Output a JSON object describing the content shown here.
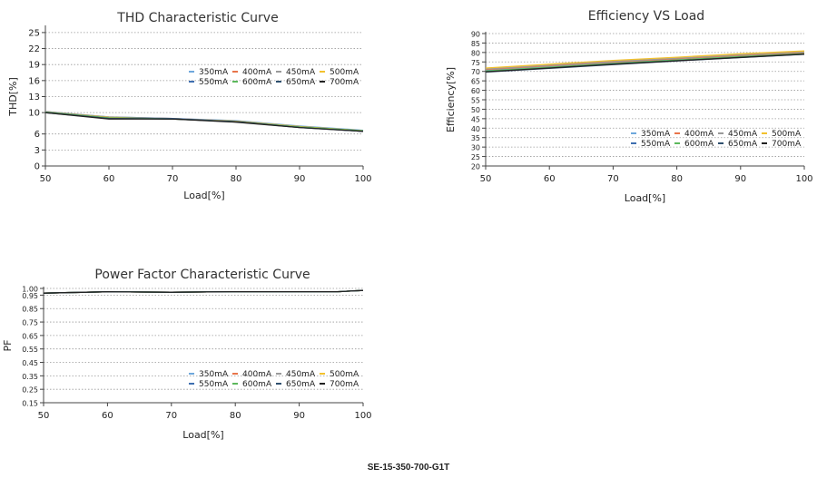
{
  "footer": {
    "model": "SE-15-350-700-G1T"
  },
  "chart_data": [
    {
      "id": "thd",
      "type": "line",
      "title": "THD Characteristic Curve",
      "xlabel": "Load[%]",
      "ylabel": "THD[%]",
      "xlim": [
        50,
        100
      ],
      "ylim": [
        0,
        26
      ],
      "xticks": [
        50,
        60,
        70,
        80,
        90,
        100
      ],
      "yticks": [
        0,
        3,
        6,
        10,
        13,
        16,
        19,
        22,
        25
      ],
      "grid": "horizontal-dotted",
      "legend": "center-right",
      "series": [
        {
          "name": "350mA",
          "color": "#6fa8dc",
          "x": [
            50,
            60,
            70,
            80,
            90,
            100
          ],
          "y": [
            10.2,
            9.2,
            8.9,
            8.5,
            7.5,
            6.7
          ]
        },
        {
          "name": "400mA",
          "color": "#e8744a",
          "x": [
            50,
            60,
            70,
            80,
            90,
            100
          ],
          "y": [
            10.2,
            9.1,
            8.9,
            8.4,
            7.4,
            6.6
          ]
        },
        {
          "name": "450mA",
          "color": "#9a9a9a",
          "x": [
            50,
            60,
            70,
            80,
            90,
            100
          ],
          "y": [
            10.2,
            9.2,
            8.9,
            8.4,
            7.4,
            6.6
          ]
        },
        {
          "name": "500mA",
          "color": "#f2c12e",
          "x": [
            50,
            60,
            70,
            80,
            90,
            100
          ],
          "y": [
            10.1,
            9.1,
            8.8,
            8.4,
            7.4,
            6.6
          ]
        },
        {
          "name": "550mA",
          "color": "#3f6fb0",
          "x": [
            50,
            60,
            70,
            80,
            90,
            100
          ],
          "y": [
            10.1,
            9.0,
            8.9,
            8.3,
            7.3,
            6.5
          ]
        },
        {
          "name": "600mA",
          "color": "#5cb85c",
          "x": [
            50,
            60,
            70,
            80,
            90,
            100
          ],
          "y": [
            10.1,
            9.0,
            8.8,
            8.3,
            7.3,
            6.6
          ]
        },
        {
          "name": "650mA",
          "color": "#2e4f6e",
          "x": [
            50,
            60,
            70,
            80,
            90,
            100
          ],
          "y": [
            10.0,
            8.9,
            8.8,
            8.3,
            7.2,
            6.5
          ]
        },
        {
          "name": "700mA",
          "color": "#222222",
          "x": [
            50,
            60,
            70,
            80,
            90,
            100
          ],
          "y": [
            10.0,
            8.8,
            8.8,
            8.2,
            7.2,
            6.5
          ]
        }
      ]
    },
    {
      "id": "efficiency",
      "type": "line",
      "title": "Efficiency VS Load",
      "xlabel": "Load[%]",
      "ylabel": "Efficiency[%]",
      "xlim": [
        50,
        100
      ],
      "ylim": [
        20,
        90
      ],
      "xticks": [
        50,
        60,
        70,
        80,
        90,
        100
      ],
      "yticks": [
        20,
        25,
        30,
        35,
        40,
        45,
        50,
        55,
        60,
        65,
        70,
        75,
        80,
        85,
        90
      ],
      "grid": "horizontal-dotted",
      "legend": "bottom-right",
      "series": [
        {
          "name": "350mA",
          "color": "#6fa8dc",
          "x": [
            50,
            60,
            70,
            80,
            90,
            100
          ],
          "y": [
            70.5,
            72.5,
            74.5,
            76.2,
            78,
            79.5
          ]
        },
        {
          "name": "400mA",
          "color": "#e8744a",
          "x": [
            50,
            60,
            70,
            80,
            90,
            100
          ],
          "y": [
            71,
            73,
            75,
            76.7,
            78.5,
            80
          ]
        },
        {
          "name": "450mA",
          "color": "#9a9a9a",
          "x": [
            50,
            60,
            70,
            80,
            90,
            100
          ],
          "y": [
            71.3,
            73.3,
            75.3,
            77,
            78.8,
            80.3
          ]
        },
        {
          "name": "500mA",
          "color": "#f2c12e",
          "x": [
            50,
            60,
            70,
            80,
            90,
            100
          ],
          "y": [
            71.8,
            73.8,
            75.8,
            77.5,
            79.3,
            80.8
          ]
        },
        {
          "name": "550mA",
          "color": "#3f6fb0",
          "x": [
            50,
            60,
            70,
            80,
            90,
            100
          ],
          "y": [
            70,
            72,
            74,
            75.8,
            77.6,
            79.2
          ]
        },
        {
          "name": "600mA",
          "color": "#5cb85c",
          "x": [
            50,
            60,
            70,
            80,
            90,
            100
          ],
          "y": [
            70.2,
            72.2,
            74.2,
            76,
            77.8,
            79.4
          ]
        },
        {
          "name": "650mA",
          "color": "#2e4f6e",
          "x": [
            50,
            60,
            70,
            80,
            90,
            100
          ],
          "y": [
            69.6,
            71.6,
            73.6,
            75.5,
            77.3,
            79
          ]
        },
        {
          "name": "700mA",
          "color": "#222222",
          "x": [
            50,
            60,
            70,
            80,
            90,
            100
          ],
          "y": [
            69.8,
            71.8,
            73.8,
            75.6,
            77.4,
            79.1
          ]
        }
      ]
    },
    {
      "id": "pf",
      "type": "line",
      "title": "Power Factor Characteristic Curve",
      "xlabel": "Load[%]",
      "ylabel": "PF",
      "xlim": [
        50,
        100
      ],
      "ylim": [
        0.15,
        1.0
      ],
      "xticks": [
        50,
        60,
        70,
        80,
        90,
        100
      ],
      "yticks": [
        0.15,
        0.25,
        0.35,
        0.45,
        0.55,
        0.65,
        0.75,
        0.85,
        0.95,
        1.0
      ],
      "ytick_labels": [
        "0.15",
        "0.25",
        "0.35",
        "0.45",
        "0.55",
        "0.65",
        "0.75",
        "0.85",
        "0.95",
        "1.00"
      ],
      "grid": "horizontal-dotted",
      "legend": "bottom-right",
      "series": [
        {
          "name": "350mA",
          "color": "#6fa8dc",
          "x": [
            50,
            60,
            70,
            80,
            90,
            96,
            100
          ],
          "y": [
            0.965,
            0.975,
            0.972,
            0.976,
            0.976,
            0.976,
            0.985
          ]
        },
        {
          "name": "400mA",
          "color": "#e8744a",
          "x": [
            50,
            60,
            70,
            80,
            90,
            96,
            100
          ],
          "y": [
            0.965,
            0.975,
            0.972,
            0.976,
            0.976,
            0.976,
            0.985
          ]
        },
        {
          "name": "450mA",
          "color": "#9a9a9a",
          "x": [
            50,
            60,
            70,
            80,
            90,
            96,
            100
          ],
          "y": [
            0.965,
            0.975,
            0.972,
            0.976,
            0.976,
            0.976,
            0.985
          ]
        },
        {
          "name": "500mA",
          "color": "#f2c12e",
          "x": [
            50,
            60,
            70,
            80,
            90,
            96,
            100
          ],
          "y": [
            0.965,
            0.975,
            0.972,
            0.976,
            0.976,
            0.976,
            0.985
          ]
        },
        {
          "name": "550mA",
          "color": "#3f6fb0",
          "x": [
            50,
            60,
            70,
            80,
            90,
            96,
            100
          ],
          "y": [
            0.965,
            0.975,
            0.972,
            0.976,
            0.976,
            0.976,
            0.985
          ]
        },
        {
          "name": "600mA",
          "color": "#5cb85c",
          "x": [
            50,
            60,
            70,
            80,
            90,
            96,
            100
          ],
          "y": [
            0.965,
            0.975,
            0.972,
            0.976,
            0.976,
            0.976,
            0.985
          ]
        },
        {
          "name": "650mA",
          "color": "#2e4f6e",
          "x": [
            50,
            60,
            70,
            80,
            90,
            96,
            100
          ],
          "y": [
            0.965,
            0.975,
            0.972,
            0.976,
            0.976,
            0.976,
            0.985
          ]
        },
        {
          "name": "700mA",
          "color": "#222222",
          "x": [
            50,
            60,
            70,
            80,
            90,
            96,
            100
          ],
          "y": [
            0.965,
            0.975,
            0.972,
            0.976,
            0.976,
            0.976,
            0.985
          ]
        }
      ]
    }
  ]
}
